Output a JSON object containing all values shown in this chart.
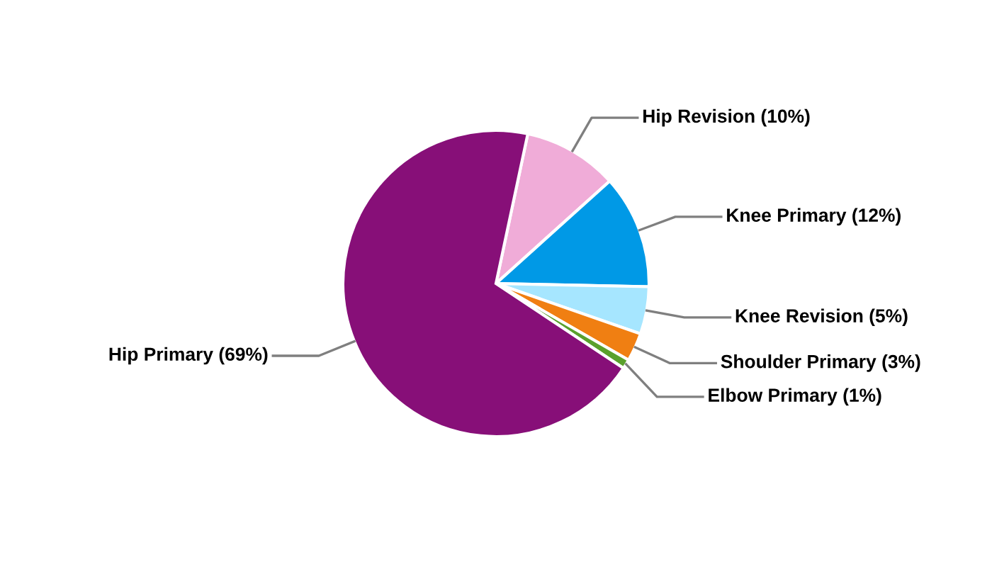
{
  "chart_data": {
    "type": "pie",
    "categories": [
      "Hip Revision (10%)",
      "Knee Primary (12%)",
      "Knee Revision (5%)",
      "Shoulder Primary (3%)",
      "Elbow Primary (1%)",
      "Hip Primary (69%)"
    ],
    "values": [
      10,
      12,
      5,
      3,
      1,
      69
    ],
    "colors": [
      "#f0acd8",
      "#0099e6",
      "#a6e6ff",
      "#f07f12",
      "#5aa02c",
      "#870f78"
    ],
    "legend": false
  }
}
